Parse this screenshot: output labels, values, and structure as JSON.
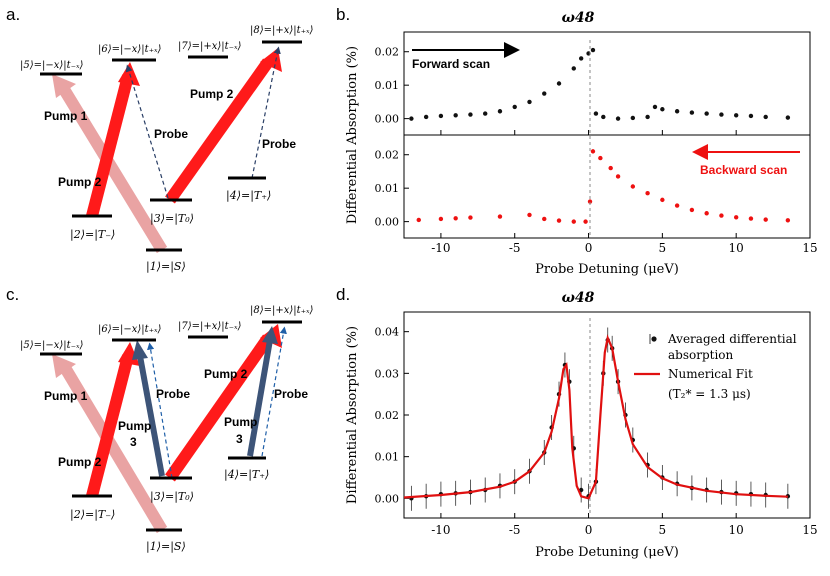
{
  "panels": {
    "a": {
      "letter": "a.",
      "states": {
        "s1": "|1⟩=|S⟩",
        "s2": "|2⟩=|T₋⟩",
        "s3": "|3⟩=|T₀⟩",
        "s4": "|4⟩=|T₊⟩",
        "s5": "|5⟩=|−x⟩|t₋ₓ⟩",
        "s6": "|6⟩=|−x⟩|t₊ₓ⟩",
        "s7": "|7⟩=|+x⟩|t₋ₓ⟩",
        "s8": "|8⟩=|+x⟩|t₊ₓ⟩"
      },
      "labels": {
        "pump1": "Pump 1",
        "pump2_left": "Pump 2",
        "pump2_right": "Pump 2",
        "probe_mid": "Probe",
        "probe_right": "Probe"
      }
    },
    "c": {
      "letter": "c.",
      "states": {
        "s1": "|1⟩=|S⟩",
        "s2": "|2⟩=|T₋⟩",
        "s3": "|3⟩=|T₀⟩",
        "s4": "|4⟩=|T₊⟩",
        "s5": "|5⟩=|−x⟩|t₋ₓ⟩",
        "s6": "|6⟩=|−x⟩|t₊ₓ⟩",
        "s7": "|7⟩=|+x⟩|t₋ₓ⟩",
        "s8": "|8⟩=|+x⟩|t₊ₓ⟩"
      },
      "labels": {
        "pump1": "Pump 1",
        "pump2_left": "Pump 2",
        "pump2_right": "Pump 2",
        "pump3_mid": "Pump",
        "pump3_mid_num": "3",
        "pump3_right": "Pump",
        "pump3_right_num": "3",
        "probe_mid": "Probe",
        "probe_right": "Probe"
      }
    }
  },
  "colors": {
    "red": "#ff1a1a",
    "pink": "#e9a3a3",
    "navy": "#3d5478",
    "blue_dash": "#1f5fa8",
    "dark_dash": "#2a3f66"
  },
  "chart_data": [
    {
      "id": "b",
      "letter": "b.",
      "type": "scatter",
      "title": "ω48",
      "xlabel": "Probe Detuning (μeV)",
      "ylabel": "Differential Absorption (%)",
      "xlim": [
        -12.5,
        15
      ],
      "xticks": [
        -10,
        -5,
        0,
        5,
        10,
        15
      ],
      "subplots": [
        {
          "name": "Forward scan",
          "color": "#111111",
          "ylim": [
            -0.004,
            0.025
          ],
          "yticks": [
            0.0,
            0.01,
            0.02
          ],
          "yticklabels": [
            "0.00",
            "0.01",
            "0.02"
          ],
          "points": [
            [
              -12,
              0
            ],
            [
              -11,
              0.0005
            ],
            [
              -10,
              0.0008
            ],
            [
              -9,
              0.001
            ],
            [
              -8,
              0.0012
            ],
            [
              -7,
              0.0015
            ],
            [
              -6,
              0.0022
            ],
            [
              -5,
              0.0035
            ],
            [
              -4,
              0.005
            ],
            [
              -3,
              0.0075
            ],
            [
              -2,
              0.0105
            ],
            [
              -1,
              0.015
            ],
            [
              -0.5,
              0.018
            ],
            [
              0,
              0.0195
            ],
            [
              0.3,
              0.0205
            ],
            [
              0.5,
              0.0015
            ],
            [
              1,
              0.0005
            ],
            [
              2,
              0
            ],
            [
              3,
              0.0002
            ],
            [
              4,
              0.0005
            ],
            [
              4.5,
              0.0035
            ],
            [
              5,
              0.0028
            ],
            [
              6,
              0.0022
            ],
            [
              7,
              0.0018
            ],
            [
              8,
              0.0015
            ],
            [
              9,
              0.0012
            ],
            [
              10,
              0.001
            ],
            [
              11,
              0.0008
            ],
            [
              12,
              0.0005
            ],
            [
              13.5,
              0.0003
            ]
          ]
        },
        {
          "name": "Backward scan",
          "color": "#ee1111",
          "ylim": [
            -0.004,
            0.025
          ],
          "yticks": [
            0.0,
            0.01,
            0.02
          ],
          "yticklabels": [
            "0.00",
            "0.01",
            "0.02"
          ],
          "points": [
            [
              -11.5,
              0.0005
            ],
            [
              -10,
              0.0008
            ],
            [
              -9,
              0.001
            ],
            [
              -8,
              0.0012
            ],
            [
              -6,
              0.0015
            ],
            [
              -4,
              0.002
            ],
            [
              -3,
              0.0008
            ],
            [
              -2,
              0.0003
            ],
            [
              -1,
              0
            ],
            [
              -0.2,
              0
            ],
            [
              0.1,
              0.006
            ],
            [
              0.3,
              0.021
            ],
            [
              0.8,
              0.019
            ],
            [
              1.5,
              0.016
            ],
            [
              2,
              0.0135
            ],
            [
              3,
              0.0105
            ],
            [
              4,
              0.0085
            ],
            [
              5,
              0.0065
            ],
            [
              6,
              0.0048
            ],
            [
              7,
              0.0035
            ],
            [
              8,
              0.0025
            ],
            [
              9,
              0.0018
            ],
            [
              10,
              0.0013
            ],
            [
              11,
              0.0009
            ],
            [
              12,
              0.0006
            ],
            [
              13.5,
              0.0004
            ]
          ]
        }
      ],
      "annotations": {
        "forward": "Forward scan",
        "backward": "Backward scan"
      }
    },
    {
      "id": "d",
      "letter": "d.",
      "type": "scatter",
      "title": "ω48",
      "xlabel": "Probe Detuning (μeV)",
      "ylabel": "Differential Absorption (%)",
      "xlim": [
        -12.5,
        15
      ],
      "ylim": [
        -0.004,
        0.044
      ],
      "xticks": [
        -10,
        -5,
        0,
        5,
        10,
        15
      ],
      "yticks": [
        0.0,
        0.01,
        0.02,
        0.03,
        0.04
      ],
      "yticklabels": [
        "0.00",
        "0.01",
        "0.02",
        "0.03",
        "0.04"
      ],
      "series": [
        {
          "name": "Averaged differential absorption",
          "color": "#111111",
          "kind": "points_with_errorbars",
          "points": [
            [
              -12,
              0
            ],
            [
              -11,
              0.0005
            ],
            [
              -10,
              0.001
            ],
            [
              -9,
              0.0012
            ],
            [
              -8,
              0.0015
            ],
            [
              -7,
              0.002
            ],
            [
              -6,
              0.003
            ],
            [
              -5,
              0.004
            ],
            [
              -4,
              0.0065
            ],
            [
              -3,
              0.011
            ],
            [
              -2.5,
              0.017
            ],
            [
              -2,
              0.025
            ],
            [
              -1.6,
              0.032
            ],
            [
              -1.3,
              0.028
            ],
            [
              -1,
              0.012
            ],
            [
              -0.5,
              0.002
            ],
            [
              0,
              0.0005
            ],
            [
              0.5,
              0.004
            ],
            [
              1,
              0.03
            ],
            [
              1.3,
              0.038
            ],
            [
              1.6,
              0.036
            ],
            [
              2,
              0.028
            ],
            [
              2.5,
              0.02
            ],
            [
              3,
              0.014
            ],
            [
              4,
              0.008
            ],
            [
              5,
              0.005
            ],
            [
              6,
              0.0035
            ],
            [
              7,
              0.0025
            ],
            [
              8,
              0.002
            ],
            [
              9,
              0.0015
            ],
            [
              10,
              0.0012
            ],
            [
              11,
              0.001
            ],
            [
              12,
              0.0008
            ],
            [
              13.5,
              0.0005
            ]
          ]
        },
        {
          "name": "Numerical Fit",
          "color": "#e01010",
          "kind": "line",
          "points": [
            [
              -12.5,
              0.0002
            ],
            [
              -10,
              0.0008
            ],
            [
              -8,
              0.0015
            ],
            [
              -6,
              0.0028
            ],
            [
              -5,
              0.004
            ],
            [
              -4,
              0.0065
            ],
            [
              -3,
              0.011
            ],
            [
              -2.5,
              0.016
            ],
            [
              -2,
              0.024
            ],
            [
              -1.7,
              0.031
            ],
            [
              -1.5,
              0.032
            ],
            [
              -1.3,
              0.026
            ],
            [
              -1.1,
              0.012
            ],
            [
              -0.8,
              0.003
            ],
            [
              -0.5,
              0.0005
            ],
            [
              0,
              0
            ],
            [
              0.5,
              0.004
            ],
            [
              0.8,
              0.02
            ],
            [
              1.1,
              0.035
            ],
            [
              1.3,
              0.0385
            ],
            [
              1.6,
              0.036
            ],
            [
              2,
              0.028
            ],
            [
              2.5,
              0.019
            ],
            [
              3,
              0.013
            ],
            [
              4,
              0.0075
            ],
            [
              5,
              0.0048
            ],
            [
              6,
              0.0033
            ],
            [
              8,
              0.0018
            ],
            [
              10,
              0.001
            ],
            [
              12,
              0.0006
            ],
            [
              13.5,
              0.0004
            ]
          ]
        }
      ],
      "legend": {
        "entry1_line1": "Averaged differential",
        "entry1_line2": "absorption",
        "entry2": "Numerical Fit",
        "entry3": "(T₂* = 1.3 μs)"
      }
    }
  ]
}
